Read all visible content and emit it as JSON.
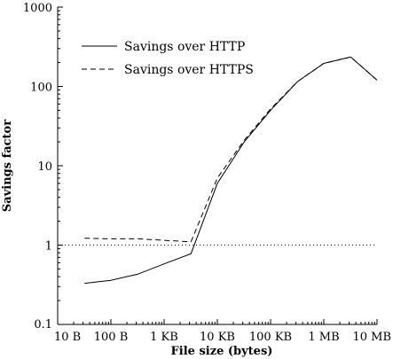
{
  "chart_data": {
    "type": "line",
    "title": "",
    "xlabel": "File size (bytes)",
    "ylabel": "Savings factor",
    "xscale": "log",
    "yscale": "log",
    "xlim": [
      10,
      10000000
    ],
    "ylim": [
      0.1,
      1000
    ],
    "x_tick_values": [
      10,
      100,
      1000,
      10000,
      100000,
      1000000,
      10000000
    ],
    "x_tick_labels": [
      "10 B",
      "100 B",
      "1 KB",
      "10 KB",
      "100 KB",
      "1 MB",
      "10 MB"
    ],
    "y_tick_values": [
      0.1,
      1,
      10,
      100,
      1000
    ],
    "y_tick_labels": [
      "0.1",
      "1",
      "10",
      "100",
      "1000"
    ],
    "grid": false,
    "legend_position": "top-left",
    "reference_line": {
      "y": 1,
      "style": "dotted"
    },
    "series": [
      {
        "name": "Savings over HTTP",
        "style": "solid",
        "color": "#000000",
        "x": [
          32,
          100,
          320,
          1000,
          3200,
          10000,
          32000,
          100000,
          320000,
          1000000,
          3200000,
          10000000
        ],
        "y": [
          0.33,
          0.36,
          0.43,
          0.58,
          0.78,
          6.0,
          20.0,
          50.0,
          115.0,
          195.0,
          235.0,
          120.0
        ]
      },
      {
        "name": "Savings over HTTPS",
        "style": "dashed",
        "color": "#000000",
        "x": [
          32,
          100,
          320,
          1000,
          3200,
          10000,
          32000,
          100000,
          320000,
          1000000,
          3200000,
          10000000
        ],
        "y": [
          1.22,
          1.2,
          1.2,
          1.15,
          1.1,
          7.0,
          21.0,
          52.0,
          115.0,
          195.0,
          235.0,
          120.0
        ]
      }
    ]
  }
}
